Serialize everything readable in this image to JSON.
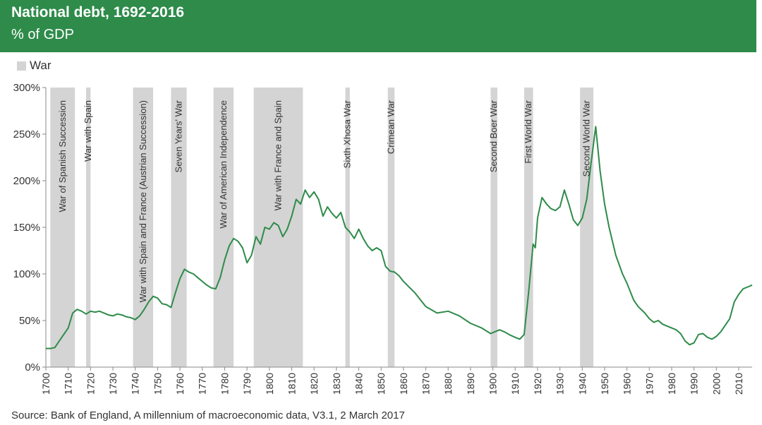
{
  "header": {
    "title": "National debt, 1692-2016",
    "subtitle": "% of GDP"
  },
  "legend": {
    "label": "War",
    "color": "#d4d4d4"
  },
  "source": "Source: Bank of England, A millennium of macroeconomic data, V3.1, 2 March 2017",
  "colors": {
    "header_bg": "#2e8b4a",
    "line": "#2e8b4a",
    "war_band": "#d4d4d4"
  },
  "chart_data": {
    "type": "line",
    "title": "National debt, 1692-2016",
    "subtitle": "% of GDP",
    "xlim": [
      1700,
      2016
    ],
    "ylim": [
      0,
      300
    ],
    "x_ticks": [
      1700,
      1710,
      1720,
      1730,
      1740,
      1750,
      1760,
      1770,
      1780,
      1790,
      1800,
      1810,
      1820,
      1830,
      1840,
      1850,
      1860,
      1870,
      1880,
      1890,
      1900,
      1910,
      1920,
      1930,
      1940,
      1950,
      1960,
      1970,
      1980,
      1990,
      2000,
      2010
    ],
    "y_ticks": [
      0,
      50,
      100,
      150,
      200,
      250,
      300
    ],
    "y_tick_labels": [
      "0%",
      "50%",
      "100%",
      "150%",
      "200%",
      "250%",
      "300%"
    ],
    "grid": false,
    "wars": [
      {
        "name": "War of Spanish Succession",
        "start": 1702,
        "end": 1713
      },
      {
        "name": "War with Spain",
        "start": 1718,
        "end": 1720
      },
      {
        "name": "War with Spain and France (Austrian Succession)",
        "start": 1739,
        "end": 1748
      },
      {
        "name": "Seven Years' War",
        "start": 1756,
        "end": 1763
      },
      {
        "name": "War of American Independence",
        "start": 1775,
        "end": 1784
      },
      {
        "name": "War with France and Spain",
        "start": 1793,
        "end": 1815
      },
      {
        "name": "Sixth Xhosa War",
        "start": 1834,
        "end": 1836
      },
      {
        "name": "Crimean War",
        "start": 1853,
        "end": 1856
      },
      {
        "name": "Second Boer War",
        "start": 1899,
        "end": 1902
      },
      {
        "name": "First World War",
        "start": 1914,
        "end": 1918
      },
      {
        "name": "Second World War",
        "start": 1939,
        "end": 1945
      }
    ],
    "series": [
      {
        "x": [
          1700,
          1702,
          1704,
          1706,
          1708,
          1710,
          1712,
          1713,
          1714,
          1716,
          1718,
          1720,
          1722,
          1724,
          1726,
          1728,
          1730,
          1732,
          1734,
          1736,
          1738,
          1740,
          1742,
          1744,
          1746,
          1748,
          1750,
          1752,
          1754,
          1756,
          1758,
          1760,
          1762,
          1764,
          1766,
          1768,
          1770,
          1772,
          1774,
          1776,
          1778,
          1780,
          1782,
          1784,
          1786,
          1788,
          1790,
          1792,
          1794,
          1796,
          1798,
          1800,
          1802,
          1804,
          1806,
          1808,
          1810,
          1812,
          1814,
          1816,
          1818,
          1820,
          1822,
          1824,
          1826,
          1828,
          1830,
          1832,
          1834,
          1836,
          1838,
          1840,
          1842,
          1844,
          1846,
          1848,
          1850,
          1852,
          1854,
          1856,
          1858,
          1860,
          1865,
          1870,
          1875,
          1880,
          1885,
          1890,
          1895,
          1899,
          1901,
          1903,
          1905,
          1908,
          1910,
          1912,
          1914,
          1916,
          1918,
          1919,
          1920,
          1922,
          1924,
          1926,
          1928,
          1930,
          1932,
          1934,
          1936,
          1938,
          1940,
          1942,
          1944,
          1946,
          1948,
          1950,
          1952,
          1955,
          1958,
          1960,
          1963,
          1965,
          1968,
          1970,
          1972,
          1974,
          1976,
          1978,
          1980,
          1982,
          1984,
          1986,
          1988,
          1990,
          1992,
          1994,
          1996,
          1998,
          2000,
          2002,
          2004,
          2006,
          2008,
          2010,
          2012,
          2014,
          2016
        ],
        "y": [
          20,
          20,
          21,
          28,
          35,
          42,
          58,
          60,
          62,
          60,
          57,
          60,
          59,
          60,
          58,
          56,
          55,
          57,
          56,
          54,
          53,
          51,
          55,
          62,
          70,
          76,
          74,
          68,
          67,
          64,
          80,
          95,
          105,
          102,
          100,
          96,
          92,
          88,
          85,
          84,
          96,
          115,
          130,
          138,
          135,
          128,
          112,
          120,
          140,
          132,
          150,
          148,
          155,
          152,
          140,
          148,
          162,
          180,
          175,
          190,
          182,
          188,
          180,
          162,
          172,
          165,
          160,
          166,
          150,
          145,
          138,
          148,
          138,
          130,
          125,
          128,
          125,
          108,
          103,
          102,
          98,
          92,
          80,
          65,
          58,
          60,
          55,
          47,
          42,
          36,
          38,
          40,
          38,
          34,
          32,
          30,
          35,
          80,
          132,
          128,
          160,
          182,
          175,
          170,
          168,
          172,
          190,
          175,
          158,
          152,
          160,
          180,
          220,
          258,
          210,
          175,
          150,
          120,
          100,
          90,
          72,
          65,
          58,
          52,
          48,
          50,
          46,
          44,
          42,
          40,
          36,
          28,
          24,
          26,
          35,
          36,
          32,
          30,
          33,
          38,
          45,
          52,
          70,
          78,
          84,
          86,
          88
        ]
      }
    ]
  }
}
